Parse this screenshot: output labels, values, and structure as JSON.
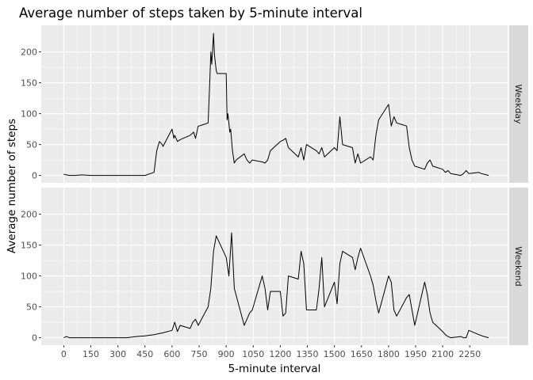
{
  "chart_data": {
    "type": "line",
    "title": "Average number of steps taken by 5-minute interval",
    "xlabel": "5-minute interval",
    "ylabel": "Average number of steps",
    "xlim": [
      -125,
      2460
    ],
    "ylim": [
      -12,
      243
    ],
    "x_ticks": [
      "0",
      "150",
      "300",
      "450",
      "600",
      "750",
      "900",
      "1050",
      "1200",
      "1350",
      "1500",
      "1650",
      "1800",
      "1950",
      "2100",
      "2250"
    ],
    "y_ticks": [
      "0",
      "50",
      "100",
      "150",
      "200"
    ],
    "grid": true,
    "legend": "none",
    "facets": [
      {
        "label": "Weekday",
        "series": {
          "color": "#000000",
          "x": [
            0,
            30,
            60,
            100,
            150,
            200,
            250,
            300,
            350,
            400,
            450,
            500,
            515,
            530,
            545,
            550,
            600,
            610,
            615,
            630,
            645,
            700,
            720,
            730,
            745,
            750,
            800,
            810,
            815,
            820,
            830,
            835,
            845,
            850,
            900,
            905,
            910,
            920,
            925,
            935,
            945,
            955,
            1000,
            1015,
            1030,
            1045,
            1100,
            1115,
            1130,
            1145,
            1200,
            1215,
            1230,
            1245,
            1300,
            1315,
            1330,
            1345,
            1400,
            1415,
            1430,
            1445,
            1500,
            1515,
            1530,
            1545,
            1600,
            1615,
            1630,
            1645,
            1700,
            1715,
            1730,
            1745,
            1800,
            1815,
            1830,
            1845,
            1900,
            1915,
            1930,
            1945,
            2000,
            2015,
            2030,
            2045,
            2100,
            2115,
            2130,
            2145,
            2200,
            2215,
            2230,
            2245,
            2300,
            2315,
            2330,
            2355
          ],
          "y": [
            2,
            0,
            0,
            1,
            0,
            0,
            0,
            0,
            0,
            0,
            0,
            5,
            40,
            55,
            50,
            47,
            75,
            60,
            65,
            55,
            58,
            65,
            70,
            60,
            80,
            80,
            85,
            160,
            200,
            180,
            230,
            195,
            170,
            165,
            165,
            90,
            100,
            70,
            75,
            40,
            20,
            25,
            35,
            25,
            20,
            25,
            22,
            20,
            25,
            40,
            55,
            57,
            60,
            45,
            30,
            45,
            25,
            50,
            40,
            35,
            45,
            30,
            45,
            40,
            95,
            50,
            45,
            20,
            35,
            20,
            30,
            25,
            65,
            90,
            115,
            80,
            95,
            85,
            80,
            45,
            25,
            15,
            10,
            20,
            25,
            15,
            10,
            5,
            8,
            3,
            0,
            3,
            8,
            3,
            5,
            3,
            2,
            0
          ]
        }
      },
      {
        "label": "Weekend",
        "series": {
          "color": "#000000",
          "x": [
            0,
            15,
            30,
            60,
            100,
            150,
            200,
            250,
            300,
            350,
            400,
            450,
            500,
            550,
            600,
            615,
            630,
            645,
            700,
            715,
            730,
            745,
            800,
            815,
            830,
            845,
            900,
            915,
            930,
            945,
            1000,
            1015,
            1030,
            1045,
            1100,
            1115,
            1130,
            1145,
            1200,
            1215,
            1230,
            1245,
            1300,
            1315,
            1330,
            1345,
            1400,
            1415,
            1430,
            1445,
            1500,
            1515,
            1530,
            1545,
            1600,
            1615,
            1630,
            1645,
            1700,
            1715,
            1730,
            1745,
            1800,
            1815,
            1830,
            1845,
            1900,
            1915,
            1930,
            1945,
            2000,
            2015,
            2030,
            2045,
            2100,
            2115,
            2130,
            2145,
            2200,
            2215,
            2230,
            2245,
            2300,
            2330,
            2355
          ],
          "y": [
            0,
            2,
            0,
            0,
            0,
            0,
            0,
            0,
            0,
            0,
            2,
            3,
            5,
            8,
            12,
            25,
            10,
            20,
            15,
            25,
            30,
            20,
            50,
            80,
            140,
            165,
            130,
            100,
            170,
            80,
            20,
            30,
            40,
            45,
            100,
            80,
            45,
            75,
            75,
            35,
            40,
            100,
            95,
            140,
            120,
            45,
            45,
            80,
            130,
            50,
            90,
            55,
            120,
            140,
            130,
            110,
            130,
            145,
            100,
            85,
            60,
            40,
            100,
            90,
            45,
            35,
            65,
            70,
            45,
            20,
            90,
            70,
            40,
            25,
            10,
            5,
            2,
            0,
            2,
            0,
            0,
            12,
            5,
            2,
            0
          ]
        }
      }
    ]
  }
}
